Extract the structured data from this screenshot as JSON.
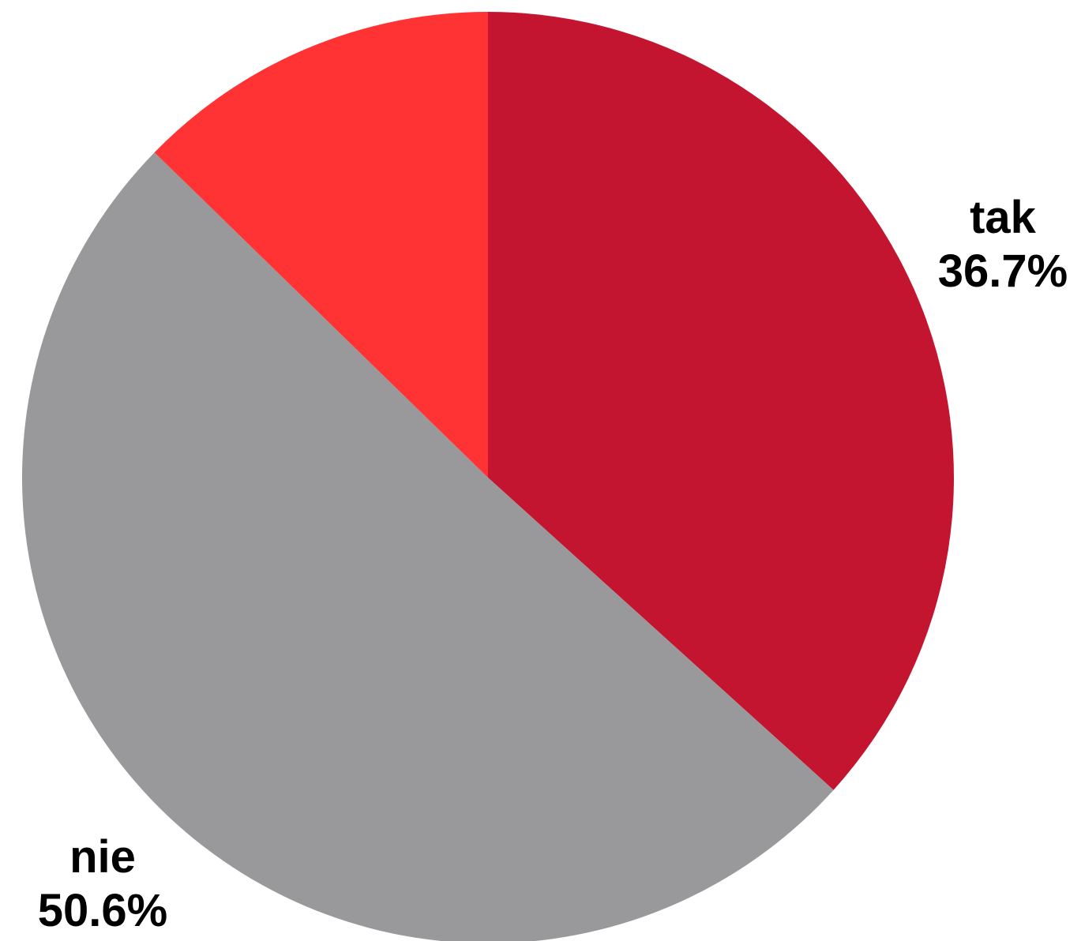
{
  "chart_data": {
    "type": "pie",
    "title": "",
    "slices": [
      {
        "label": "tak",
        "value": 36.7,
        "value_label": "36.7%",
        "color": "#c41530"
      },
      {
        "label": "nie",
        "value": 50.6,
        "value_label": "50.6%",
        "color": "#99999b"
      },
      {
        "label": "",
        "value": 12.7,
        "value_label": "",
        "color": "#ff3333"
      }
    ],
    "start": "12 o'clock",
    "direction": "clockwise"
  }
}
